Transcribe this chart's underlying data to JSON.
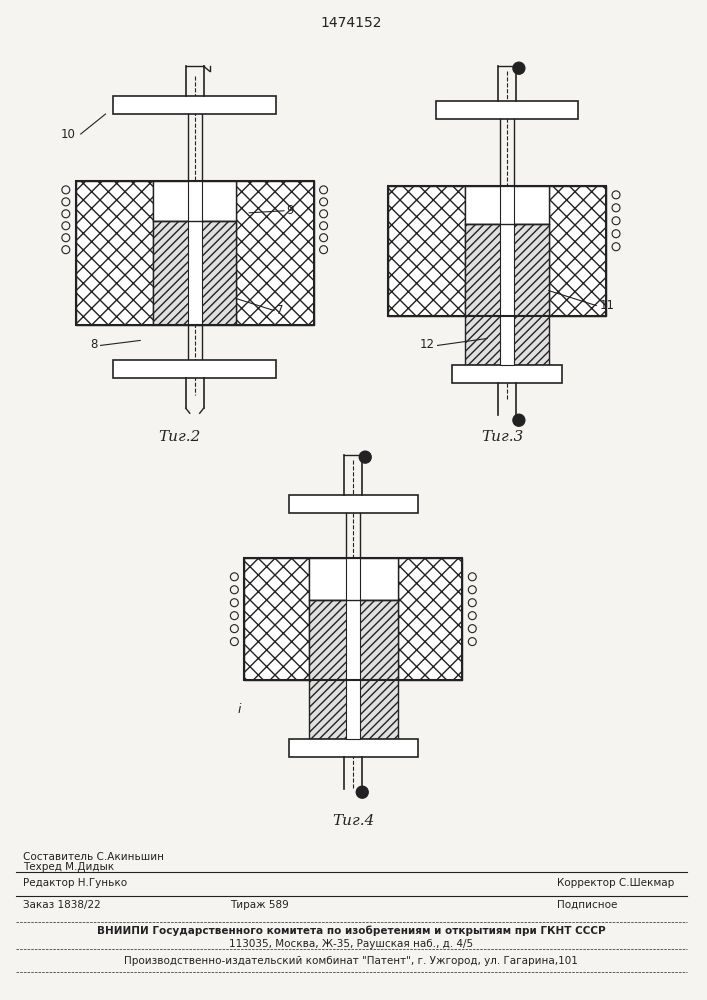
{
  "title": "1474152",
  "bg_color": "#f5f4f0",
  "fig2_label": "Τиг.2",
  "fig3_label": "Τиг.3",
  "fig4_label": "Τиг.4",
  "footer_row1_left": "Редактор Н.Гунько",
  "footer_row1_c1": "Составитель С.Акиньшин",
  "footer_row1_c2": "Техред М.Дидык",
  "footer_row1_right": "Корректор С.Шекмар",
  "footer_row2_left": "Заказ 1838/22",
  "footer_row2_center": "Тираж 589",
  "footer_row2_right": "Подписное",
  "footer_row3": "ВНИИПИ Государственного комитета по изобретениям и открытиям при ГКНТ СССР",
  "footer_row3b": "113035, Москва, Ж-35, Раушская наб., д. 4/5",
  "footer_row4": "Производственно-издательский комбинат \"Патент\", г. Ужгород, ул. Гагарина,101"
}
